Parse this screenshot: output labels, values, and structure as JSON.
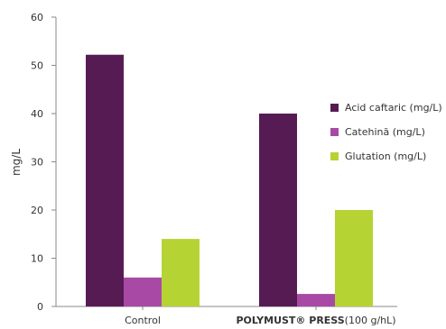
{
  "chart_data": {
    "type": "bar",
    "ylabel": "mg/L",
    "ylim": [
      0,
      60
    ],
    "yticks": [
      "0",
      "10",
      "20",
      "30",
      "40",
      "50",
      "60"
    ],
    "categories": [
      {
        "name_bold": "",
        "name_rest": "Control"
      },
      {
        "name_bold": "POLYMUST® PRESS",
        "name_rest": "(100 g/hL)"
      }
    ],
    "series": [
      {
        "name": "Acid caftaric (mg/L)",
        "color": "#571b54",
        "values": [
          52.2,
          40.0
        ]
      },
      {
        "name": "Catehină (mg/L)",
        "color": "#a84aa5",
        "values": [
          6.0,
          2.6
        ]
      },
      {
        "name": "Glutation (mg/L)",
        "color": "#b6d334",
        "values": [
          14.0,
          20.0
        ]
      }
    ],
    "legend_position": "right",
    "grid": false
  }
}
